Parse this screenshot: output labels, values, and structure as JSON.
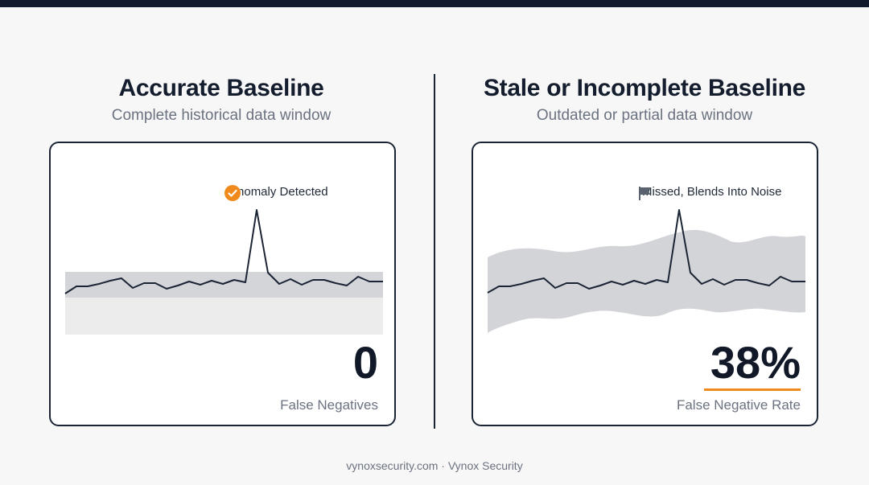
{
  "left": {
    "title": "Accurate Baseline",
    "subtitle": "Complete historical data window",
    "annotation": "Anomaly Detected",
    "metric_value": "0",
    "metric_label": "False Negatives"
  },
  "right": {
    "title": "Stale or Incomplete Baseline",
    "subtitle": "Outdated or partial data window",
    "annotation": "Missed, Blends Into Noise",
    "metric_value": "38%",
    "metric_label": "False Negative Rate"
  },
  "footer": "vynoxsecurity.com · Vynox Security",
  "colors": {
    "accent": "#f08a1c",
    "dark": "#141d2e",
    "band": "#d3d4d8",
    "muted": "#6b7280"
  },
  "icons": {
    "left_annotation": "check-circle-icon",
    "right_annotation": "flag-icon"
  }
}
